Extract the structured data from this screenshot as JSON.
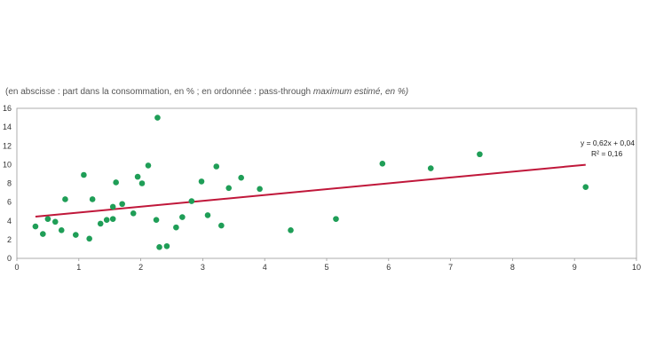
{
  "subtitle": {
    "part1": "(en abscisse : part dans la consommation, en % ; en ordonnée : ",
    "part2": "pass-through",
    "part3": " maximum estimé, en %)"
  },
  "chart_data": {
    "type": "scatter",
    "xlim": [
      0,
      10
    ],
    "ylim": [
      0,
      16
    ],
    "x_ticks": [
      "0",
      "1",
      "2",
      "3",
      "4",
      "5",
      "6",
      "7",
      "8",
      "9",
      "10"
    ],
    "y_ticks": [
      "0",
      "2",
      "4",
      "6",
      "8",
      "10",
      "12",
      "14",
      "16"
    ],
    "grid": false,
    "colors": {
      "points": "#1f9e57",
      "trend": "#c0173a",
      "frame": "#999999"
    },
    "points": [
      [
        0.3,
        3.4
      ],
      [
        0.42,
        2.6
      ],
      [
        0.5,
        4.2
      ],
      [
        0.62,
        3.9
      ],
      [
        0.72,
        3.0
      ],
      [
        0.78,
        6.3
      ],
      [
        0.95,
        2.5
      ],
      [
        1.08,
        8.9
      ],
      [
        1.17,
        2.1
      ],
      [
        1.22,
        6.3
      ],
      [
        1.35,
        3.7
      ],
      [
        1.45,
        4.1
      ],
      [
        1.55,
        5.5
      ],
      [
        1.55,
        4.2
      ],
      [
        1.6,
        8.1
      ],
      [
        1.7,
        5.8
      ],
      [
        1.88,
        4.8
      ],
      [
        1.95,
        8.7
      ],
      [
        2.02,
        8.0
      ],
      [
        2.12,
        9.9
      ],
      [
        2.25,
        4.1
      ],
      [
        2.27,
        15.0
      ],
      [
        2.3,
        1.2
      ],
      [
        2.42,
        1.3
      ],
      [
        2.57,
        3.3
      ],
      [
        2.67,
        4.4
      ],
      [
        2.82,
        6.1
      ],
      [
        2.98,
        8.2
      ],
      [
        3.08,
        4.6
      ],
      [
        3.22,
        9.8
      ],
      [
        3.3,
        3.5
      ],
      [
        3.42,
        7.5
      ],
      [
        3.62,
        8.6
      ],
      [
        3.92,
        7.4
      ],
      [
        4.42,
        3.0
      ],
      [
        5.15,
        4.2
      ],
      [
        5.9,
        10.1
      ],
      [
        6.68,
        9.6
      ],
      [
        7.47,
        11.1
      ],
      [
        9.18,
        7.6
      ]
    ],
    "trendline": {
      "from": [
        0.3,
        4.45
      ],
      "to": [
        9.18,
        9.98
      ],
      "equation": "y = 0,62x + 0,04",
      "r2": "R² = 0,16"
    }
  }
}
